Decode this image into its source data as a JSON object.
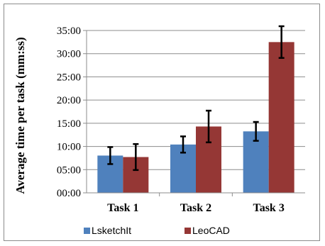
{
  "chart_data": {
    "type": "bar",
    "title": "",
    "xlabel": "",
    "ylabel": "Average time per task (mm:ss)",
    "categories": [
      "Task 1",
      "Task 2",
      "Task 3"
    ],
    "y_ticks": [
      "00:00",
      "05:00",
      "10:00",
      "15:00",
      "20:00",
      "25:00",
      "30:00",
      "35:00"
    ],
    "ylim_seconds": [
      0,
      2100
    ],
    "grid": true,
    "legend_position": "bottom",
    "series": [
      {
        "name": "LsketchIt",
        "color": "#4f81bd",
        "values_seconds": [
          482,
          625,
          795
        ],
        "error_seconds": [
          110,
          105,
          122
        ]
      },
      {
        "name": "LeoCAD",
        "color": "#953735",
        "values_seconds": [
          463,
          858,
          1950
        ],
        "error_seconds": [
          168,
          205,
          205
        ]
      }
    ]
  }
}
